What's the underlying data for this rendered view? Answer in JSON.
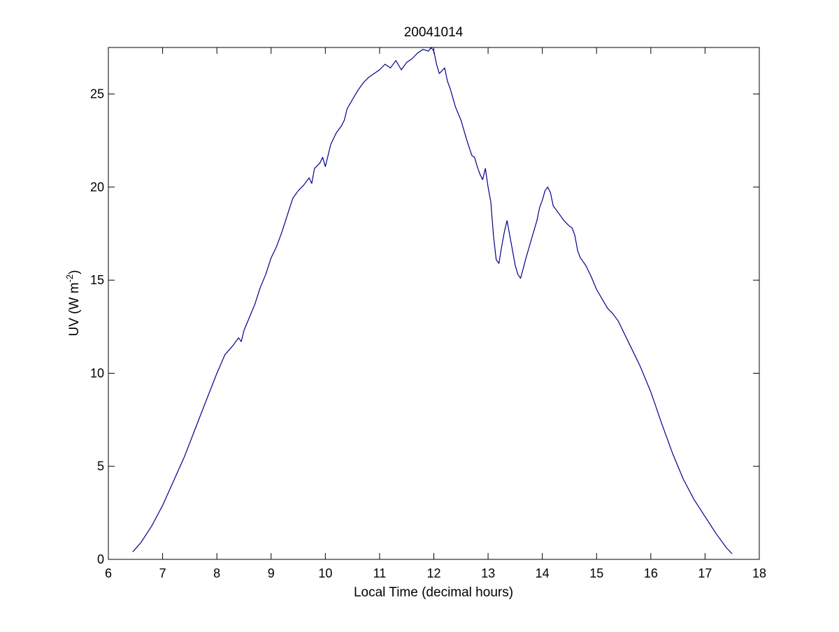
{
  "figure": {
    "title": "20041014",
    "background": "#ffffff"
  },
  "chart_data": {
    "type": "line",
    "title": "20041014",
    "xlabel": "Local Time (decimal hours)",
    "ylabel_main": "UV (W m",
    "ylabel_sup": "-2",
    "ylabel_close": ")",
    "xlim": [
      6,
      18
    ],
    "ylim": [
      0,
      27.5
    ],
    "xticks": [
      6,
      7,
      8,
      9,
      10,
      11,
      12,
      13,
      14,
      15,
      16,
      17,
      18
    ],
    "yticks": [
      0,
      5,
      10,
      15,
      20,
      25
    ],
    "xtick_labels": [
      "6",
      "7",
      "8",
      "9",
      "10",
      "11",
      "12",
      "13",
      "14",
      "15",
      "16",
      "17",
      "18"
    ],
    "ytick_labels": [
      "0",
      "5",
      "10",
      "15",
      "20",
      "25"
    ],
    "grid": false,
    "legend": "none",
    "line_color": "#00008b",
    "series": [
      {
        "x": [
          6.45,
          6.6,
          6.8,
          7.0,
          7.2,
          7.4,
          7.6,
          7.8,
          8.0,
          8.15,
          8.3,
          8.4,
          8.45,
          8.5,
          8.6,
          8.7,
          8.8,
          8.9,
          9.0,
          9.1,
          9.2,
          9.3,
          9.4,
          9.5,
          9.6,
          9.7,
          9.75,
          9.8,
          9.9,
          9.95,
          10.0,
          10.1,
          10.2,
          10.3,
          10.35,
          10.4,
          10.5,
          10.6,
          10.7,
          10.8,
          10.9,
          11.0,
          11.1,
          11.2,
          11.3,
          11.4,
          11.5,
          11.6,
          11.7,
          11.8,
          11.9,
          11.95,
          12.0,
          12.05,
          12.1,
          12.2,
          12.25,
          12.3,
          12.4,
          12.5,
          12.6,
          12.7,
          12.75,
          12.8,
          12.85,
          12.9,
          12.95,
          13.0,
          13.05,
          13.1,
          13.15,
          13.2,
          13.25,
          13.3,
          13.35,
          13.4,
          13.45,
          13.5,
          13.55,
          13.6,
          13.7,
          13.8,
          13.9,
          13.95,
          14.0,
          14.05,
          14.1,
          14.15,
          14.2,
          14.3,
          14.4,
          14.5,
          14.55,
          14.6,
          14.65,
          14.7,
          14.8,
          14.9,
          15.0,
          15.1,
          15.2,
          15.3,
          15.4,
          15.5,
          15.6,
          15.7,
          15.8,
          16.0,
          16.2,
          16.4,
          16.6,
          16.8,
          17.0,
          17.2,
          17.4,
          17.5
        ],
        "y": [
          0.4,
          0.9,
          1.8,
          2.9,
          4.2,
          5.5,
          7.0,
          8.5,
          10.0,
          11.0,
          11.5,
          11.9,
          11.7,
          12.3,
          13.0,
          13.7,
          14.6,
          15.3,
          16.2,
          16.8,
          17.6,
          18.5,
          19.4,
          19.8,
          20.1,
          20.5,
          20.2,
          21.0,
          21.3,
          21.6,
          21.1,
          22.3,
          22.9,
          23.3,
          23.6,
          24.2,
          24.7,
          25.2,
          25.6,
          25.9,
          26.1,
          26.3,
          26.6,
          26.4,
          26.8,
          26.3,
          26.7,
          26.9,
          27.2,
          27.4,
          27.3,
          27.5,
          27.3,
          26.6,
          26.1,
          26.4,
          25.7,
          25.3,
          24.3,
          23.6,
          22.6,
          21.7,
          21.6,
          21.1,
          20.7,
          20.4,
          21.0,
          20.0,
          19.2,
          17.4,
          16.1,
          15.9,
          16.8,
          17.6,
          18.2,
          17.4,
          16.6,
          15.8,
          15.3,
          15.1,
          16.2,
          17.2,
          18.2,
          18.9,
          19.3,
          19.8,
          20.0,
          19.7,
          19.0,
          18.6,
          18.2,
          17.9,
          17.8,
          17.4,
          16.6,
          16.2,
          15.8,
          15.2,
          14.5,
          14.0,
          13.5,
          13.2,
          12.8,
          12.2,
          11.6,
          11.0,
          10.4,
          9.0,
          7.3,
          5.7,
          4.3,
          3.2,
          2.3,
          1.4,
          0.6,
          0.3
        ]
      }
    ]
  }
}
